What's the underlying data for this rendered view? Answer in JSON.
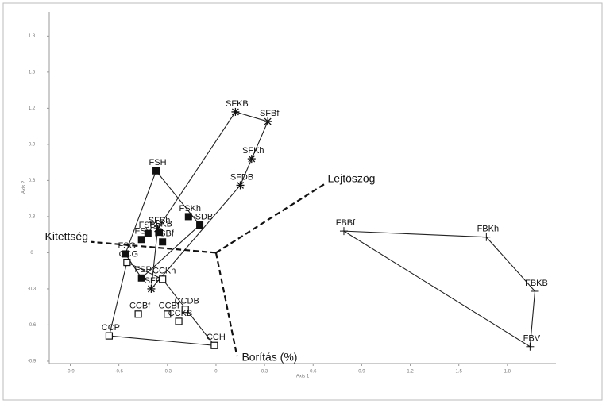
{
  "chart_data": {
    "type": "scatter",
    "xlabel": "Axis 1",
    "ylabel": "Axis 2",
    "xlim": [
      -1.03,
      2.1
    ],
    "ylim": [
      -0.92,
      2.0
    ],
    "xticks": [
      -0.9,
      -0.6,
      -0.3,
      0,
      0.3,
      0.6,
      0.9,
      1.2,
      1.5,
      1.8
    ],
    "yticks": [
      -0.9,
      -0.6,
      -0.3,
      0,
      0.3,
      0.6,
      0.9,
      1.2,
      1.5,
      1.8
    ],
    "series": [
      {
        "marker": "star",
        "labels": [
          "SFKB",
          "SFBf",
          "SFKh",
          "SFDB",
          "SFBh",
          "SFP"
        ],
        "x": [
          0.12,
          0.32,
          0.22,
          0.15,
          -0.36,
          -0.4
        ],
        "y": [
          1.17,
          1.09,
          0.78,
          0.56,
          0.2,
          -0.3
        ]
      },
      {
        "marker": "filled-square",
        "labels": [
          "FSH",
          "FSKh",
          "FSDB",
          "FSKB",
          "FSBh",
          "FSV",
          "FSBf",
          "FSG",
          "FSP"
        ],
        "x": [
          -0.37,
          -0.17,
          -0.1,
          -0.35,
          -0.42,
          -0.46,
          -0.33,
          -0.56,
          -0.46
        ],
        "y": [
          0.68,
          0.3,
          0.23,
          0.17,
          0.16,
          0.11,
          0.09,
          -0.01,
          -0.21
        ]
      },
      {
        "marker": "open-square",
        "labels": [
          "CCG",
          "CCKh",
          "CCBf",
          "CCBf",
          "CCDB",
          "CCKB",
          "CCP",
          "CCH"
        ],
        "x": [
          -0.55,
          -0.33,
          -0.3,
          -0.48,
          -0.19,
          -0.23,
          -0.66,
          -0.01
        ],
        "y": [
          -0.08,
          -0.22,
          -0.51,
          -0.51,
          -0.47,
          -0.57,
          -0.69,
          -0.77
        ]
      },
      {
        "marker": "plus",
        "labels": [
          "FBBf",
          "FBKh",
          "FBKB",
          "FBV"
        ],
        "x": [
          0.79,
          1.67,
          1.97,
          1.94
        ],
        "y": [
          0.18,
          0.13,
          -0.32,
          -0.78
        ]
      }
    ],
    "vectors": [
      {
        "label": "Lejtöszög",
        "x": 0.67,
        "y": 0.57
      },
      {
        "label": "Kitettség",
        "x": -0.77,
        "y": 0.09
      },
      {
        "label": "Borítás (%)",
        "x": 0.13,
        "y": -0.86
      }
    ]
  }
}
